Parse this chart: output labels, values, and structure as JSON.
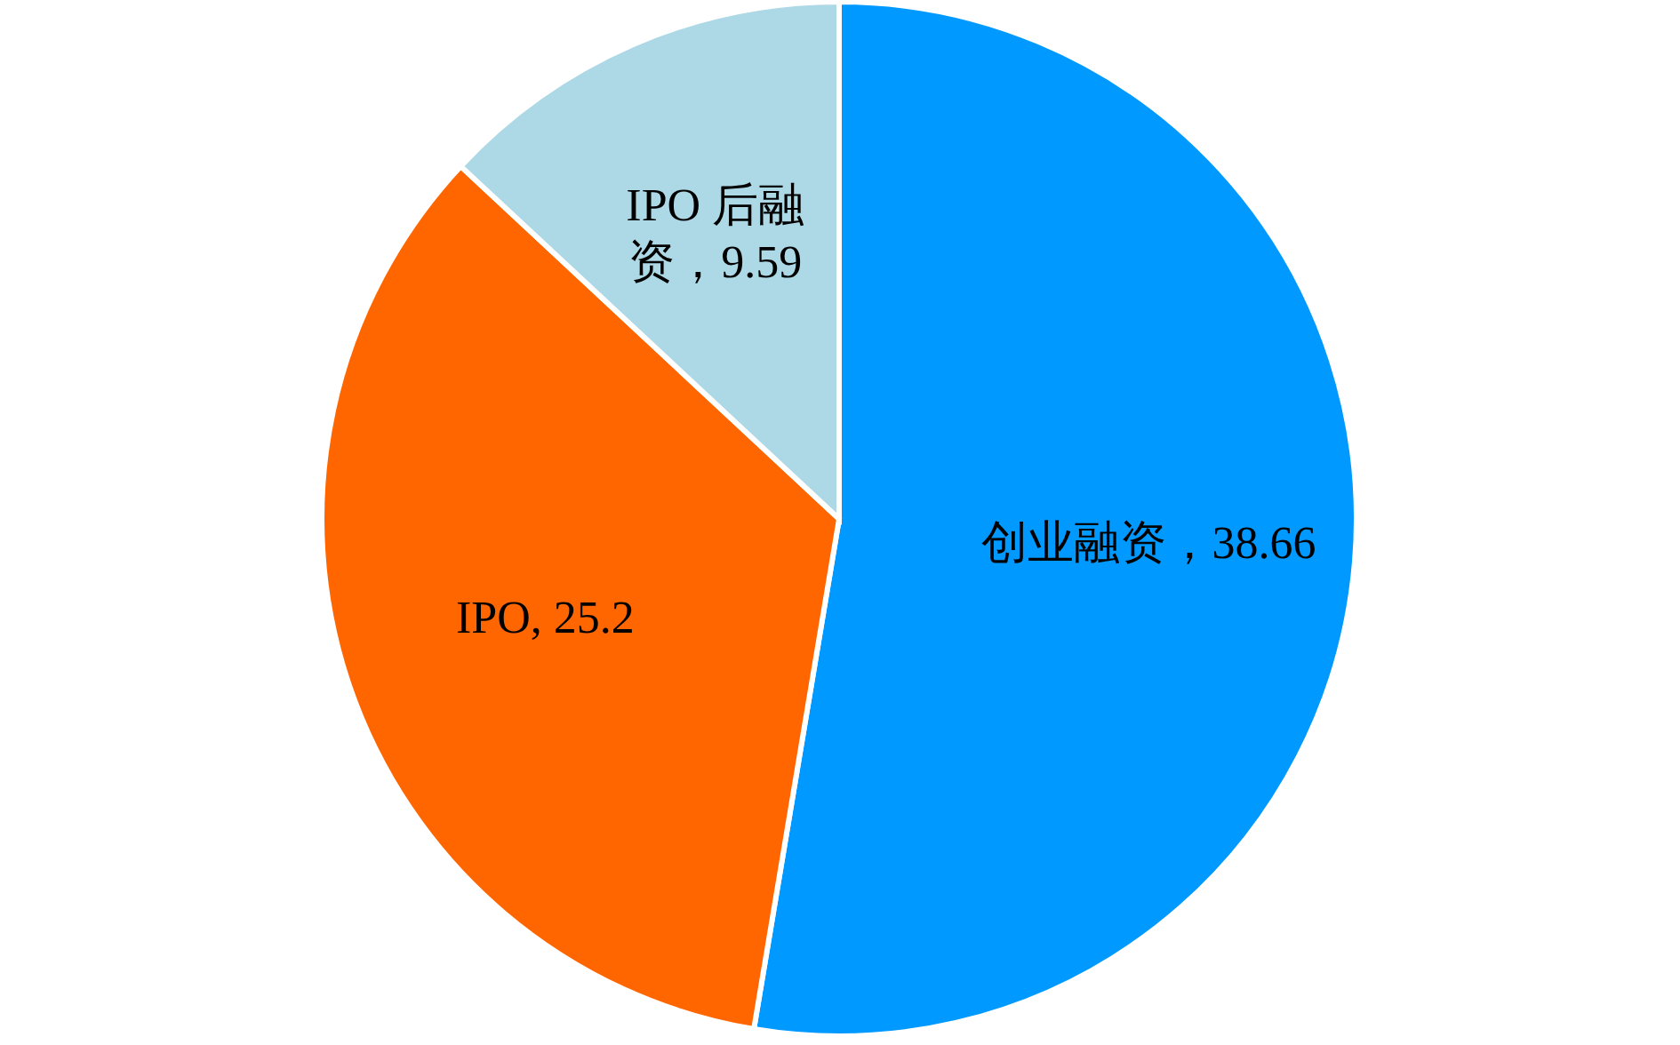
{
  "chart_data": {
    "type": "pie",
    "categories": [
      "创业融资",
      "IPO",
      "IPO 后融资"
    ],
    "values": [
      38.66,
      25.2,
      9.59
    ],
    "colors": [
      "#0099ff",
      "#ff6600",
      "#add8e6"
    ],
    "value_labels": [
      "38.66",
      "25.2",
      "9.59"
    ],
    "legend": false
  }
}
